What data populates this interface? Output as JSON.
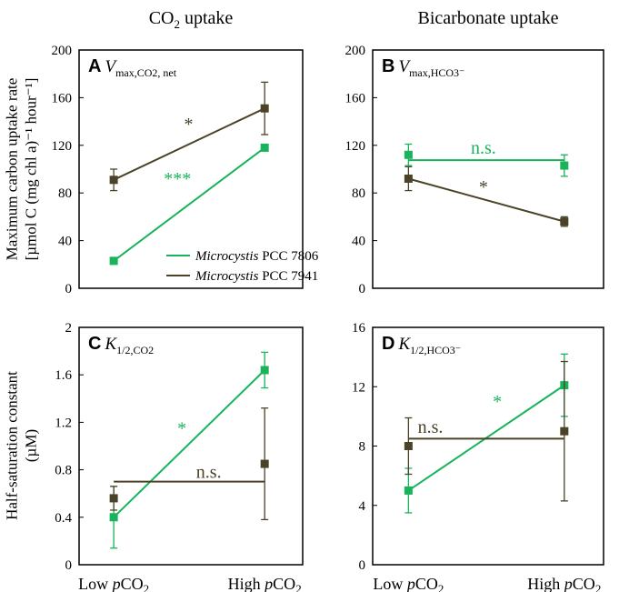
{
  "figure": {
    "col_titles": [
      {
        "main": "CO",
        "sub": "2",
        "tail": " uptake"
      },
      {
        "main": "Bicarbonate uptake",
        "sub": "",
        "tail": ""
      }
    ],
    "ylabel_top": [
      "Maximum carbon uptake rate",
      "[µmol C (mg chl a)⁻¹ hour⁻¹]"
    ],
    "ylabel_bottom": [
      "Half-saturation constant",
      "(µM)"
    ],
    "xticks": [
      "Low pCO2",
      "High pCO2"
    ],
    "colors": {
      "pcc7806": "#18b35a",
      "pcc7941": "#4a4328"
    },
    "legend": [
      {
        "genus": "Microcystis",
        "strain": " PCC 7806",
        "color": "#18b35a"
      },
      {
        "genus": "Microcystis",
        "strain": " PCC 7941",
        "color": "#4a4328"
      }
    ]
  },
  "chart_data": [
    {
      "panel": "A",
      "symbol": "V",
      "subscript": "max,CO2, net",
      "type": "line",
      "ylim": [
        0,
        200
      ],
      "yticks": [
        0,
        40,
        80,
        120,
        160,
        200
      ],
      "categories": [
        "Low pCO2",
        "High pCO2"
      ],
      "series": [
        {
          "name": "Microcystis PCC 7806",
          "values": [
            23,
            118
          ],
          "err": [
            0,
            0
          ],
          "fit": [
            23,
            118
          ]
        },
        {
          "name": "Microcystis PCC 7941",
          "values": [
            91,
            151
          ],
          "err": [
            9,
            22
          ],
          "fit": [
            91,
            151
          ]
        }
      ],
      "annotations": [
        {
          "text": "***",
          "x": 0.44,
          "y": 87,
          "series": 0
        },
        {
          "text": "*",
          "x": 0.49,
          "y": 133,
          "series": 1
        }
      ]
    },
    {
      "panel": "B",
      "symbol": "V",
      "subscript": "max,HCO3⁻",
      "type": "line",
      "ylim": [
        0,
        200
      ],
      "yticks": [
        0,
        40,
        80,
        120,
        160,
        200
      ],
      "categories": [
        "Low pCO2",
        "High pCO2"
      ],
      "series": [
        {
          "name": "Microcystis PCC 7806",
          "values": [
            112,
            103
          ],
          "err": [
            9,
            9
          ],
          "fit": [
            107.5,
            107.5
          ]
        },
        {
          "name": "Microcystis PCC 7941",
          "values": [
            92,
            56
          ],
          "err": [
            10,
            4
          ],
          "fit": [
            92,
            56
          ]
        }
      ],
      "annotations": [
        {
          "text": "n.s.",
          "x": 0.48,
          "y": 113,
          "series": 0
        },
        {
          "text": "*",
          "x": 0.48,
          "y": 80,
          "series": 1
        }
      ]
    },
    {
      "panel": "C",
      "symbol": "K",
      "subscript": "1/2,CO2",
      "type": "line",
      "ylim": [
        0,
        2
      ],
      "yticks": [
        0,
        0.4,
        0.8,
        1.2,
        1.6,
        2
      ],
      "categories": [
        "Low pCO2",
        "High pCO2"
      ],
      "series": [
        {
          "name": "Microcystis PCC 7806",
          "values": [
            0.4,
            1.64
          ],
          "err": [
            0.26,
            0.15
          ],
          "fit": [
            0.4,
            1.64
          ]
        },
        {
          "name": "Microcystis PCC 7941",
          "values": [
            0.56,
            0.85
          ],
          "err": [
            0.1,
            0.47
          ],
          "fit": [
            0.7,
            0.7
          ]
        }
      ],
      "annotations": [
        {
          "text": "*",
          "x": 0.46,
          "y": 1.1,
          "series": 0
        },
        {
          "text": "n.s.",
          "x": 0.58,
          "y": 0.73,
          "series": 1
        }
      ]
    },
    {
      "panel": "D",
      "symbol": "K",
      "subscript": "1/2,HCO3⁻",
      "type": "line",
      "ylim": [
        0,
        16
      ],
      "yticks": [
        0,
        4,
        8,
        12,
        16
      ],
      "categories": [
        "Low pCO2",
        "High pCO2"
      ],
      "series": [
        {
          "name": "Microcystis PCC 7806",
          "values": [
            5,
            12.1
          ],
          "err": [
            1.5,
            2.1
          ],
          "fit": [
            5,
            12.1
          ]
        },
        {
          "name": "Microcystis PCC 7941",
          "values": [
            8,
            9
          ],
          "err": [
            1.9,
            4.7
          ],
          "fit": [
            8.5,
            8.5
          ]
        }
      ],
      "annotations": [
        {
          "text": "*",
          "x": 0.54,
          "y": 10.6,
          "series": 0
        },
        {
          "text": "n.s.",
          "x": 0.25,
          "y": 8.9,
          "series": 1
        }
      ]
    }
  ]
}
